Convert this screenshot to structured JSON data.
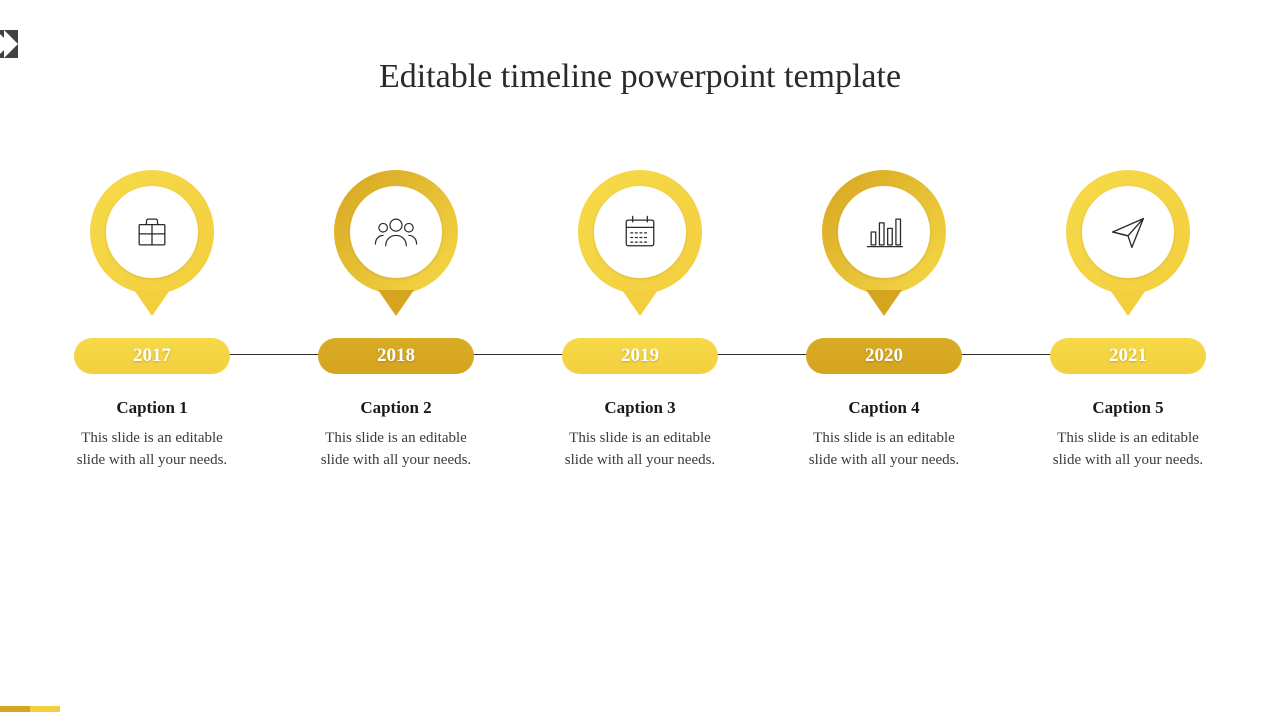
{
  "title": "Editable timeline powerpoint template",
  "background_color": "#ffffff",
  "title_color": "#2a2a2a",
  "title_fontsize": 34,
  "corner_flag_color": "#414142",
  "colors": {
    "yellow_light": "#f3cf3f",
    "yellow_dark": "#d6a520",
    "yellow_gradient_start": "#f6d948",
    "yellow_gradient_end": "#d9ab25",
    "text_dark": "#1a1a1a",
    "text_body": "#3a3a3a",
    "connector": "#333333"
  },
  "icon_stroke": "#2a2a2a",
  "icon_stroke_width": 1.4,
  "pin_outer_diameter": 124,
  "pin_inner_diameter": 92,
  "pill_width": 156,
  "pill_height": 36,
  "items": [
    {
      "year": "2017",
      "caption": "Caption 1",
      "desc": "This slide is an editable slide with all your needs.",
      "variant": "light",
      "icon": "briefcase"
    },
    {
      "year": "2018",
      "caption": "Caption 2",
      "desc": "This slide is an editable slide with all your needs.",
      "variant": "dark",
      "icon": "people"
    },
    {
      "year": "2019",
      "caption": "Caption 3",
      "desc": "This slide is an editable slide with all your needs.",
      "variant": "light",
      "icon": "calendar"
    },
    {
      "year": "2020",
      "caption": "Caption 4",
      "desc": "This slide is an editable slide with all your needs.",
      "variant": "dark",
      "icon": "chart"
    },
    {
      "year": "2021",
      "caption": "Caption 5",
      "desc": "This slide is an editable slide with all your needs.",
      "variant": "light",
      "icon": "plane"
    }
  ],
  "bottom_bar": {
    "color_left": "#d6a520",
    "color_right": "#f3cf3f",
    "width": 60,
    "height": 6
  }
}
